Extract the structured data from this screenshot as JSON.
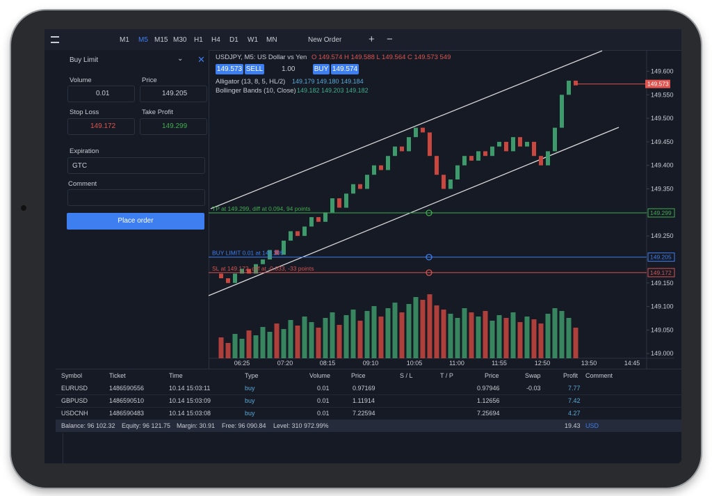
{
  "toolbar": {
    "timeframes": [
      "M1",
      "M5",
      "M15",
      "M30",
      "H1",
      "H4",
      "D1",
      "W1",
      "MN"
    ],
    "new_order": "New Order"
  },
  "order_panel": {
    "order_type": "Buy Limit",
    "volume_label": "Volume",
    "volume": "0.01",
    "price_label": "Price",
    "price": "149.205",
    "sl_label": "Stop Loss",
    "sl": "149.172",
    "tp_label": "Take Profit",
    "tp": "149.299",
    "expiration_label": "Expiration",
    "expiration": "GTC",
    "comment_label": "Comment",
    "button": "Place order"
  },
  "chart_data": {
    "type": "candlestick",
    "title": "USDJPY, M5: US Dollar vs Yen",
    "ohlc": "O 149.574 H 149.588 L 149.564 C 149.573 549",
    "sell_price": "149.573",
    "sell": "SELL",
    "lot": "1.00",
    "buy": "BUY",
    "buy_price": "149.574",
    "indicators": [
      {
        "name": "Alligator (13, 8, 5, HL/2)",
        "values": "149.179 149.180 149.184"
      },
      {
        "name": "Bollinger Bands (10, Close)",
        "values": "149.182 149.203 149.182"
      }
    ],
    "levels": [
      {
        "label": "TP at 149.299, diff at 0.094, 94 points",
        "value": 149.299,
        "value_label": "149.299",
        "color": "#3fae4e"
      },
      {
        "label": "BUY LIMIT 0.01 at 149.205",
        "value": 149.205,
        "value_label": "149.205",
        "color": "#3d7ef0"
      },
      {
        "label": "SL at 149.172, diff at -0.033, -33 points",
        "value": 149.172,
        "value_label": "149.172",
        "color": "#d9534f"
      }
    ],
    "current": {
      "value": 149.573,
      "label": "149.573"
    },
    "first_open": 149.17,
    "closes": [
      149.16,
      149.15,
      149.17,
      149.18,
      149.17,
      149.19,
      149.2,
      149.22,
      149.21,
      149.24,
      149.26,
      149.25,
      149.27,
      149.29,
      149.28,
      149.3,
      149.33,
      149.31,
      149.34,
      149.36,
      149.35,
      149.38,
      149.4,
      149.39,
      149.42,
      149.44,
      149.43,
      149.46,
      149.48,
      149.47,
      149.42,
      149.38,
      149.35,
      149.37,
      149.4,
      149.42,
      149.41,
      149.43,
      149.42,
      149.44,
      149.45,
      149.43,
      149.46,
      149.44,
      149.45,
      149.42,
      149.4,
      149.43,
      149.48,
      149.55,
      149.58,
      149.57
    ],
    "volumes": [
      30,
      22,
      35,
      28,
      40,
      33,
      45,
      38,
      50,
      42,
      55,
      47,
      60,
      52,
      44,
      58,
      66,
      48,
      62,
      70,
      54,
      68,
      75,
      60,
      72,
      80,
      66,
      78,
      88,
      84,
      92,
      76,
      70,
      64,
      58,
      72,
      66,
      60,
      68,
      54,
      62,
      58,
      66,
      52,
      60,
      56,
      50,
      64,
      72,
      68,
      58,
      44
    ],
    "ylim": [
      148.99,
      149.645
    ],
    "yticks": [
      {
        "value": 149.0,
        "label": "149.000"
      },
      {
        "value": 149.05,
        "label": "149.050"
      },
      {
        "value": 149.1,
        "label": "149.100"
      },
      {
        "value": 149.15,
        "label": "149.150"
      },
      {
        "value": 149.2,
        "label": "149.200"
      },
      {
        "value": 149.25,
        "label": "149.250"
      },
      {
        "value": 149.3,
        "label": "149.300"
      },
      {
        "value": 149.35,
        "label": "149.350"
      },
      {
        "value": 149.4,
        "label": "149.400"
      },
      {
        "value": 149.45,
        "label": "149.450"
      },
      {
        "value": 149.5,
        "label": "149.500"
      },
      {
        "value": 149.55,
        "label": "149.550"
      },
      {
        "value": 149.6,
        "label": "149.600"
      }
    ],
    "time_ticks": [
      "06:25",
      "07:20",
      "08:15",
      "09:10",
      "10:05",
      "11:00",
      "11:55",
      "12:50",
      "13:50",
      "14:45"
    ]
  },
  "positions": {
    "headers": [
      "Symbol",
      "Ticket",
      "Time",
      "Type",
      "Volume",
      "Price",
      "S / L",
      "T / P",
      "Price",
      "Swap",
      "Profit",
      "Comment"
    ],
    "rows": [
      {
        "symbol": "EURUSD",
        "ticket": "1486590556",
        "time": "10.14 15:03:11",
        "type": "buy",
        "volume": "0.01",
        "open_price": "0.97169",
        "price": "0.97946",
        "swap": "-0.03",
        "profit": "7.77"
      },
      {
        "symbol": "GBPUSD",
        "ticket": "1486590510",
        "time": "10.14 15:03:09",
        "type": "buy",
        "volume": "0.01",
        "open_price": "1.11914",
        "price": "1.12656",
        "profit": "7.42"
      },
      {
        "symbol": "USDCNH",
        "ticket": "1486590483",
        "time": "10.14 15:03:08",
        "type": "buy",
        "volume": "0.01",
        "open_price": "7.22594",
        "price": "7.25694",
        "profit": "4.27"
      }
    ]
  },
  "status": {
    "balance": "Balance: 96 102.32",
    "equity": "Equity: 96 121.75",
    "margin": "Margin: 30.91",
    "free": "Free: 96 090.84",
    "level": "Level: 310 972.99%",
    "total": "19.43",
    "currency": "USD"
  }
}
